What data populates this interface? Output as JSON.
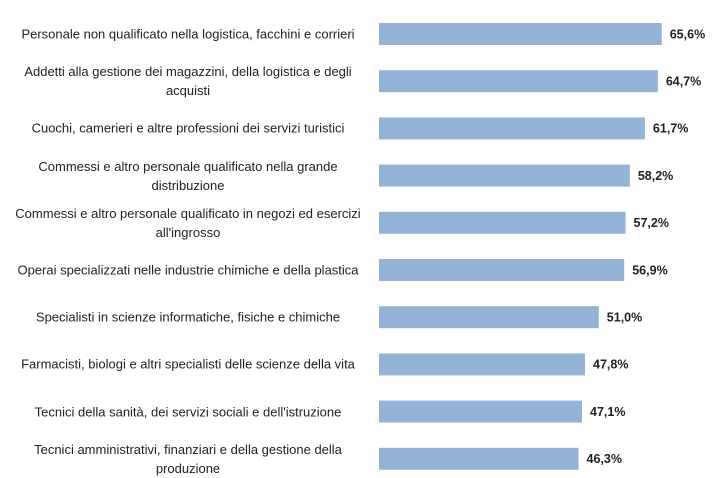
{
  "chart_data": {
    "type": "bar",
    "orientation": "horizontal",
    "categories": [
      "Personale non qualificato nella logistica, facchini e corrieri",
      "Addetti alla gestione dei magazzini, della logistica e degli acquisti",
      "Cuochi, camerieri e altre professioni dei servizi turistici",
      "Commessi e altro personale qualificato nella grande distribuzione",
      "Commessi e altro personale qualificato in negozi ed esercizi all'ingrosso",
      "Operai specializzati nelle industrie chimiche e della plastica",
      "Specialisti in scienze informatiche, fisiche e chimiche",
      "Farmacisti, biologi e altri specialisti delle scienze della vita",
      "Tecnici della sanità, dei servizi sociali e dell'istruzione",
      "Tecnici amministrativi, finanziari e della gestione della produzione"
    ],
    "values": [
      65.6,
      64.7,
      61.7,
      58.2,
      57.2,
      56.9,
      51.0,
      47.8,
      47.1,
      46.3
    ],
    "value_labels": [
      "65,6%",
      "64,7%",
      "61,7%",
      "58,2%",
      "57,2%",
      "56,9%",
      "51,0%",
      "47,8%",
      "47,1%",
      "46,3%"
    ],
    "color": "#95b3d7"
  }
}
